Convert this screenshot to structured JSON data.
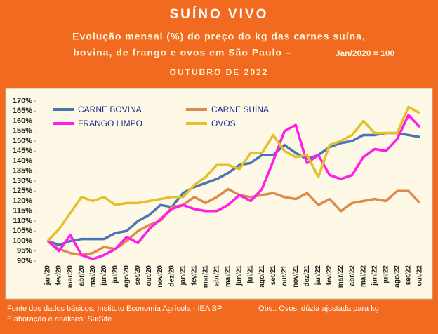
{
  "chart_data": {
    "type": "line",
    "title": "SUÍNO VIVO",
    "subtitle_lines": [
      "Evolução mensal (%) do preço do kg das carnes suína,",
      "bovina, de frango e ovos em São Paulo –"
    ],
    "base_note": "Jan/2020 = 100",
    "date_label": "OUTUBRO DE 2022",
    "categories": [
      "jan/20",
      "fev/20",
      "mar/20",
      "abr/20",
      "mai/20",
      "jun/20",
      "jul/20",
      "ago/20",
      "set/20",
      "out/20",
      "nov/20",
      "dez/20",
      "jan/21",
      "fev/21",
      "mar/21",
      "abr/21",
      "mai/21",
      "jun/21",
      "jul/21",
      "ago/21",
      "set/21",
      "out/21",
      "nov/21",
      "dez/21",
      "jan/22",
      "fev/22",
      "mar/22",
      "abr/22",
      "mai/22",
      "jun/22",
      "jul/22",
      "ago/22",
      "set/22",
      "out/22"
    ],
    "series": [
      {
        "name": "CARNE BOVINA",
        "color": "#4a74b4",
        "values": [
          100,
          98,
          100,
          101,
          101,
          101,
          104,
          105,
          110,
          113,
          118,
          117,
          124,
          127,
          129,
          131,
          134,
          138,
          139,
          143,
          143,
          148,
          144,
          141,
          143,
          147,
          149,
          150,
          153,
          153,
          154,
          154,
          153,
          152
        ]
      },
      {
        "name": "CARNE SUÍNA",
        "color": "#dc8a4e",
        "values": [
          100,
          96,
          94,
          93,
          94,
          97,
          96,
          100,
          105,
          108,
          110,
          117,
          118,
          122,
          119,
          122,
          126,
          123,
          122,
          123,
          124,
          122,
          121,
          124,
          118,
          121,
          115,
          119,
          120,
          121,
          120,
          125,
          125,
          119
        ]
      },
      {
        "name": "FRANGO LIMPO",
        "color": "#ff1ee8",
        "values": [
          100,
          95,
          103,
          93,
          91,
          93,
          96,
          102,
          99,
          106,
          111,
          116,
          118,
          116,
          115,
          115,
          118,
          123,
          120,
          126,
          140,
          155,
          158,
          139,
          143,
          133,
          131,
          133,
          142,
          146,
          145,
          151,
          163,
          157
        ]
      },
      {
        "name": "OVOS",
        "color": "#e3c02c",
        "values": [
          100,
          106,
          114,
          122,
          120,
          122,
          118,
          119,
          119,
          120,
          121,
          122,
          122,
          128,
          132,
          138,
          138,
          136,
          144,
          144,
          153,
          145,
          142,
          143,
          132,
          148,
          150,
          153,
          160,
          154,
          154,
          154,
          167,
          164
        ]
      }
    ],
    "ylim": [
      90,
      170
    ],
    "yticks": [
      {
        "value": 90,
        "label": "90%"
      },
      {
        "value": 95,
        "label": "95%"
      },
      {
        "value": 100,
        "label": "100%"
      },
      {
        "value": 105,
        "label": "105%"
      },
      {
        "value": 110,
        "label": "110%"
      },
      {
        "value": 115,
        "label": "115%"
      },
      {
        "value": 120,
        "label": "120%"
      },
      {
        "value": 125,
        "label": "125%"
      },
      {
        "value": 130,
        "label": "130%"
      },
      {
        "value": 135,
        "label": "135%"
      },
      {
        "value": 140,
        "label": "140%"
      },
      {
        "value": 145,
        "label": "145%"
      },
      {
        "value": 150,
        "label": "150%"
      },
      {
        "value": 155,
        "label": "155%"
      },
      {
        "value": 160,
        "label": "160%"
      },
      {
        "value": 165,
        "label": "165%"
      },
      {
        "value": 170,
        "label": "170%"
      }
    ],
    "source": "Fonte dos dados básicos:  Instituto Economia Agrícola - IEA SP",
    "obs": "Obs.: Ovos, dúzia ajustada para kg",
    "credit": "Elaboração e análises: SuiSite"
  }
}
